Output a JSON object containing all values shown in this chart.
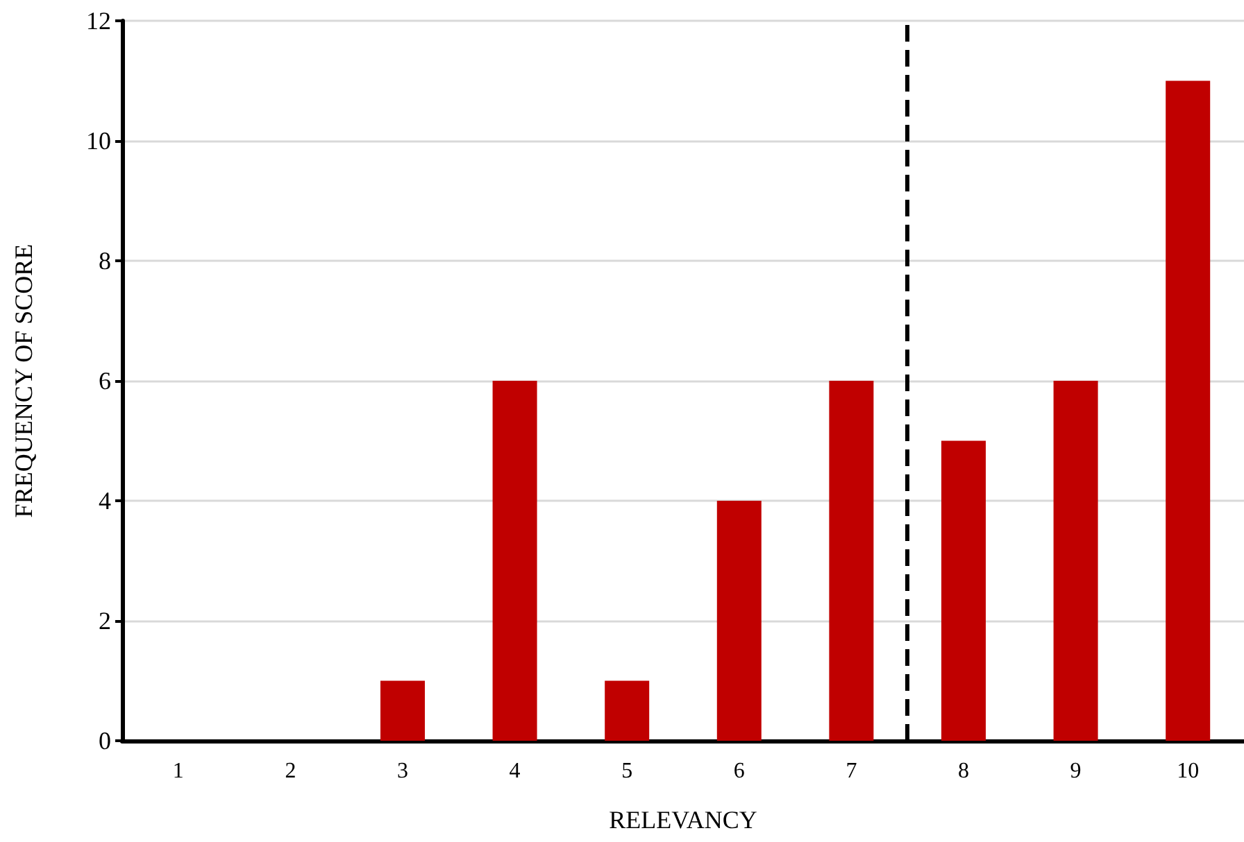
{
  "chart_data": {
    "type": "bar",
    "xlabel": "RELEVANCY",
    "ylabel": "FREQUENCY OF SCORE",
    "x": [
      1,
      2,
      3,
      4,
      5,
      6,
      7,
      8,
      9,
      10
    ],
    "values": [
      0,
      0,
      1,
      6,
      1,
      4,
      6,
      5,
      6,
      11
    ],
    "color": "#c00000",
    "xlim": [
      0.5,
      10.5
    ],
    "xticks": [
      1,
      2,
      3,
      4,
      5,
      6,
      7,
      8,
      9,
      10
    ],
    "ylim": [
      0,
      12
    ],
    "yticks": [
      0,
      2,
      4,
      6,
      8,
      10,
      12
    ],
    "grid": "y",
    "ref_lines": [
      {
        "axis": "x",
        "value": 7.5,
        "color": "#000000",
        "line_style": "dashed"
      }
    ]
  }
}
